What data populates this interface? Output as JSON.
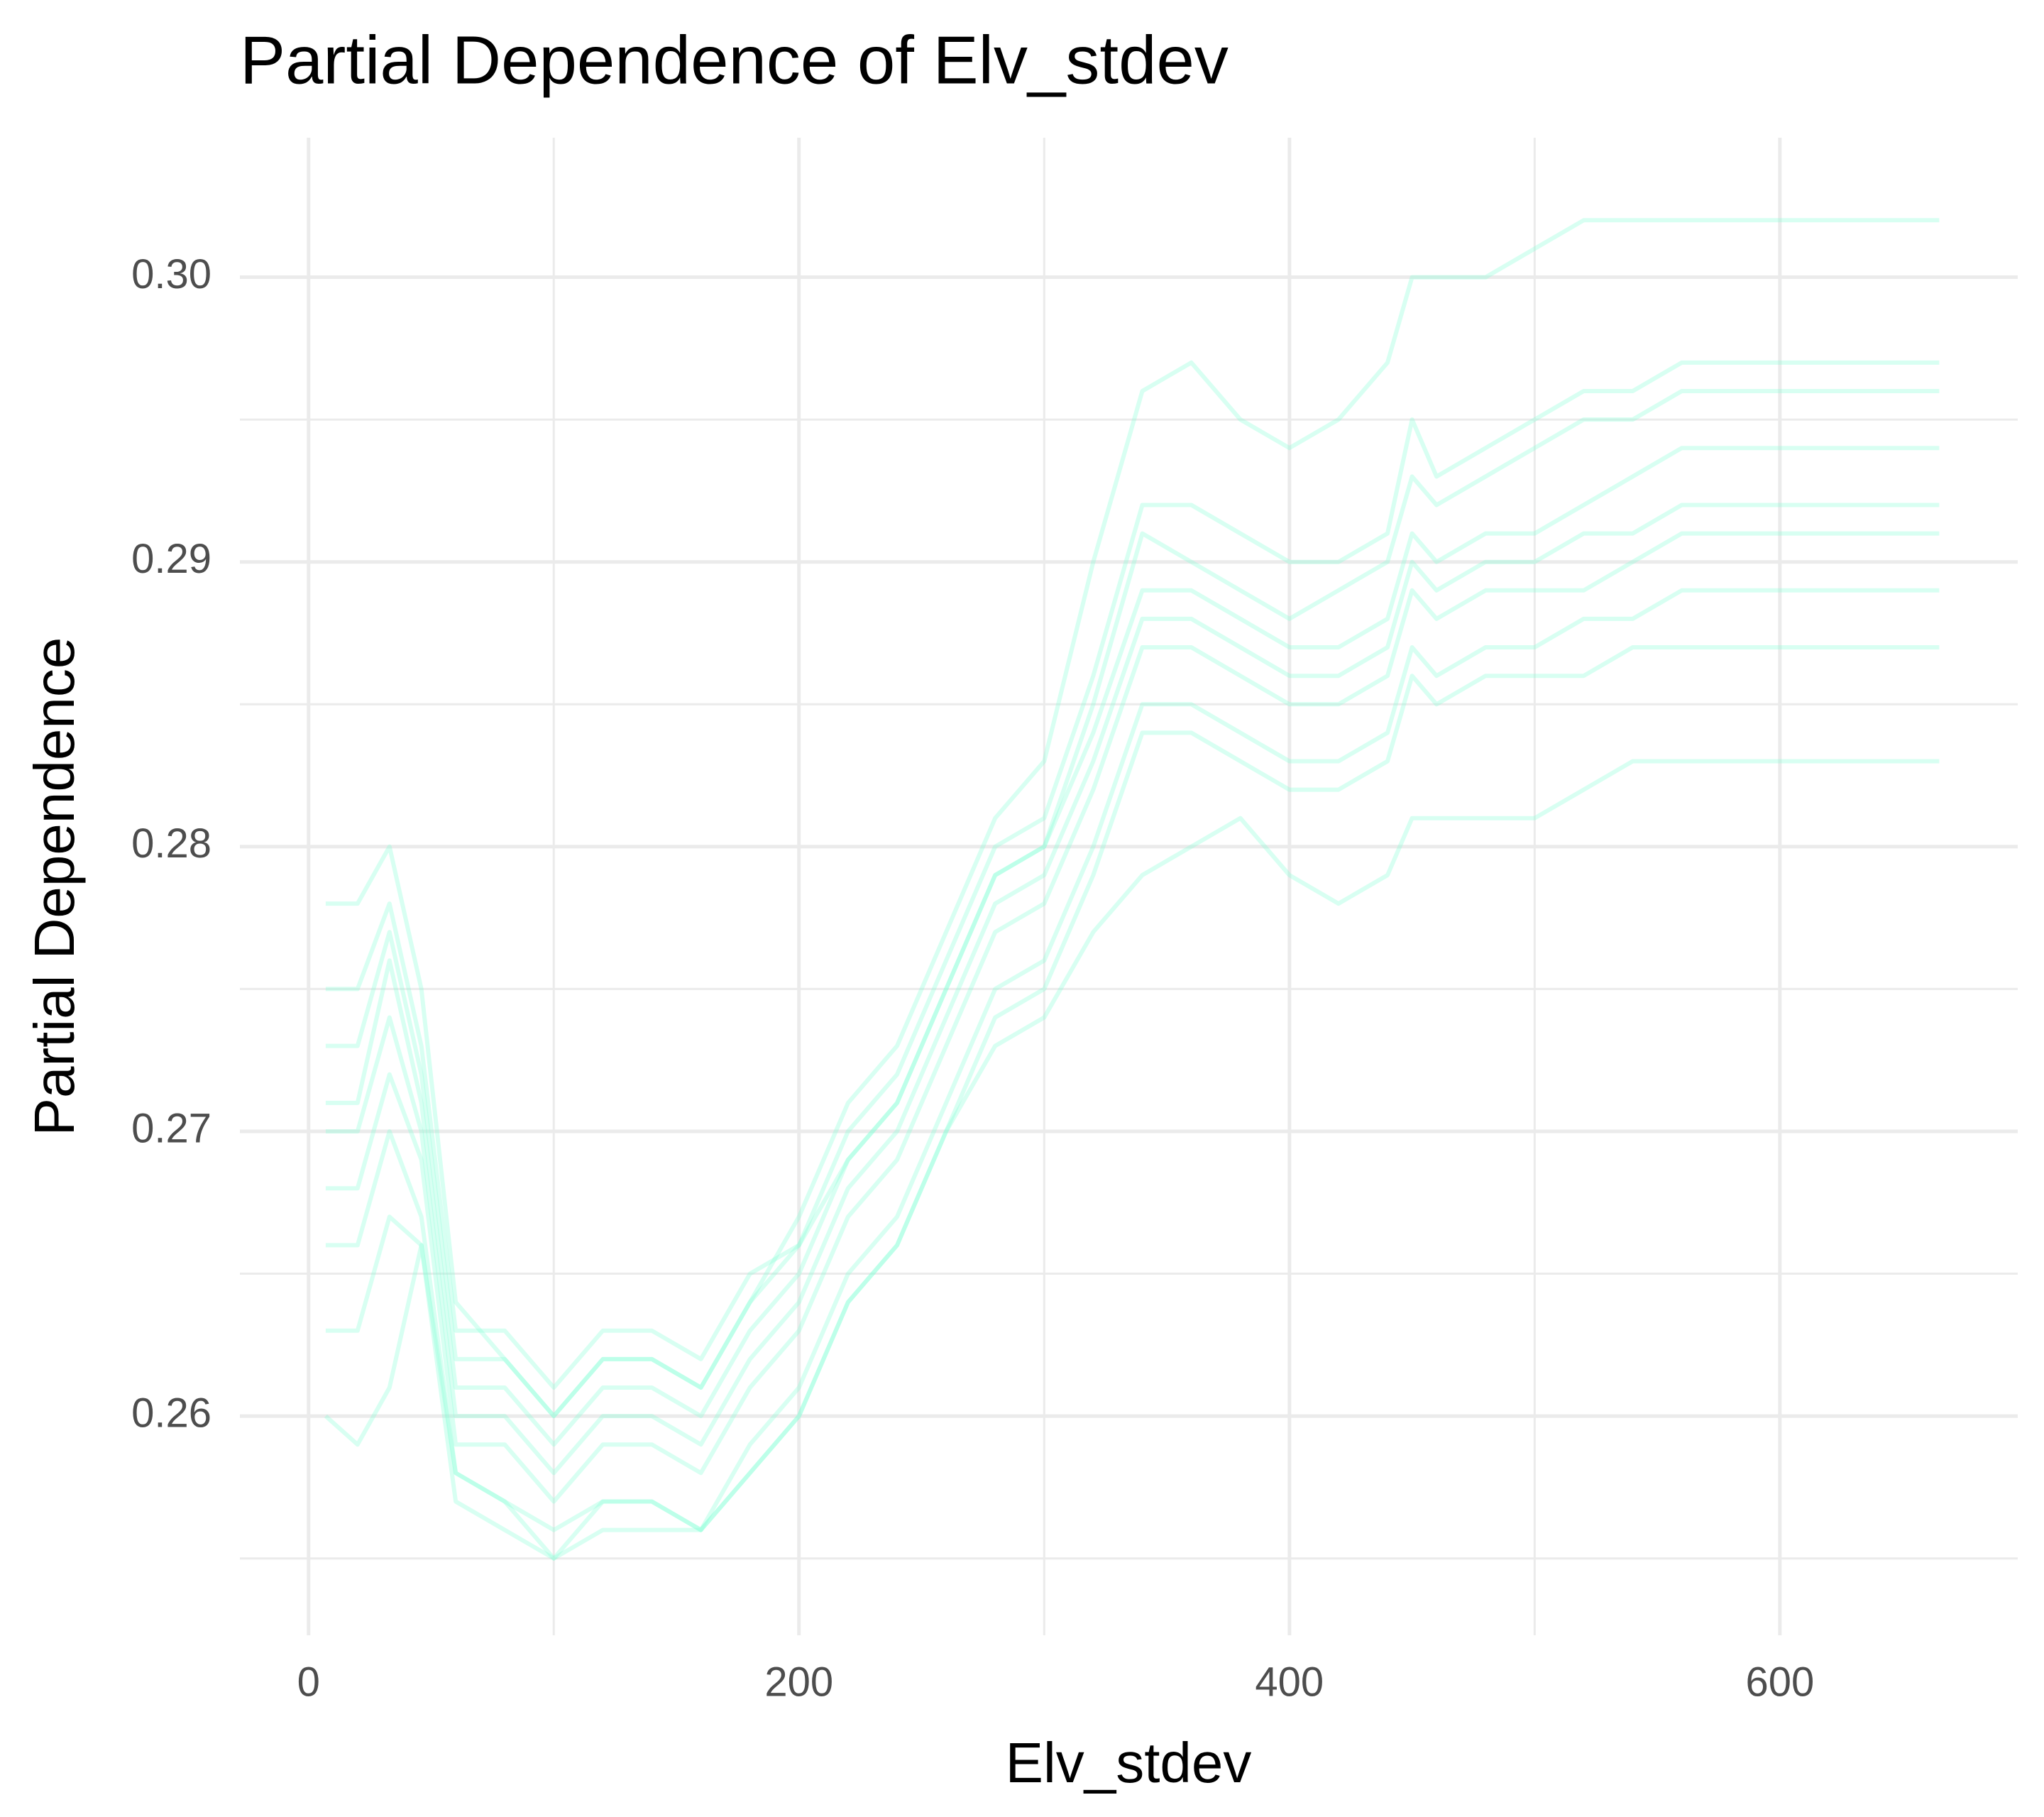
{
  "chart_data": {
    "type": "line",
    "title": "Partial Dependence of Elv_stdev",
    "x_label": "Elv_stdev",
    "y_label": "Partial Dependence",
    "x": [
      7,
      20,
      33,
      46,
      60,
      80,
      100,
      120,
      140,
      160,
      180,
      200,
      220,
      240,
      260,
      280,
      300,
      320,
      340,
      360,
      380,
      400,
      420,
      440,
      450,
      460,
      480,
      500,
      520,
      540,
      560,
      580,
      665
    ],
    "color": "#7fffd4",
    "alpha": 0.3,
    "grid": true,
    "xlim": [
      -28,
      697
    ],
    "xticks": [
      0,
      200,
      400,
      600
    ],
    "ylim": [
      0.2523,
      0.3049
    ],
    "yticks": [
      0.26,
      0.27,
      0.28,
      0.29,
      {
        "value": 0.3,
        "label": "0.30"
      }
    ],
    "series": [
      {
        "values": [
          0.27,
          0.27,
          0.274,
          0.27,
          0.26,
          0.26,
          0.258,
          0.26,
          0.26,
          0.259,
          0.262,
          0.264,
          0.268,
          0.27,
          0.274,
          0.278,
          0.279,
          0.283,
          0.288,
          0.288,
          0.287,
          0.286,
          0.286,
          0.287,
          0.29,
          0.289,
          0.29,
          0.29,
          0.291,
          0.291,
          0.292,
          0.292,
          0.292
        ]
      },
      {
        "values": [
          0.273,
          0.273,
          0.277,
          0.272,
          0.262,
          0.262,
          0.26,
          0.262,
          0.262,
          0.261,
          0.264,
          0.266,
          0.27,
          0.272,
          0.276,
          0.28,
          0.281,
          0.286,
          0.292,
          0.292,
          0.291,
          0.29,
          0.29,
          0.291,
          0.295,
          0.293,
          0.294,
          0.295,
          0.296,
          0.296,
          0.297,
          0.297,
          0.297
        ]
      },
      {
        "values": [
          0.266,
          0.266,
          0.27,
          0.267,
          0.258,
          0.257,
          0.255,
          0.257,
          0.257,
          0.256,
          0.259,
          0.261,
          0.265,
          0.267,
          0.271,
          0.275,
          0.276,
          0.28,
          0.285,
          0.285,
          0.284,
          0.283,
          0.283,
          0.284,
          0.287,
          0.286,
          0.287,
          0.287,
          0.288,
          0.288,
          0.289,
          0.289,
          0.289
        ]
      },
      {
        "values": [
          0.278,
          0.278,
          0.28,
          0.275,
          0.264,
          0.262,
          0.26,
          0.262,
          0.262,
          0.261,
          0.264,
          0.267,
          0.271,
          0.273,
          0.277,
          0.281,
          0.283,
          0.29,
          0.296,
          0.297,
          0.295,
          0.294,
          0.295,
          0.297,
          0.3,
          0.3,
          0.3,
          0.301,
          0.302,
          0.302,
          0.302,
          0.302,
          0.302
        ]
      },
      {
        "values": [
          0.26,
          0.259,
          0.261,
          0.266,
          0.258,
          0.257,
          0.256,
          0.257,
          0.257,
          0.256,
          0.258,
          0.26,
          0.264,
          0.266,
          0.27,
          0.273,
          0.274,
          0.277,
          0.279,
          0.28,
          0.281,
          0.279,
          0.278,
          0.279,
          0.281,
          0.281,
          0.281,
          0.281,
          0.282,
          0.283,
          0.283,
          0.283,
          0.283
        ]
      },
      {
        "values": [
          0.271,
          0.271,
          0.276,
          0.271,
          0.261,
          0.261,
          0.259,
          0.261,
          0.261,
          0.26,
          0.263,
          0.265,
          0.269,
          0.271,
          0.275,
          0.279,
          0.28,
          0.284,
          0.289,
          0.289,
          0.288,
          0.287,
          0.287,
          0.288,
          0.291,
          0.29,
          0.291,
          0.291,
          0.292,
          0.293,
          0.294,
          0.294,
          0.294
        ]
      },
      {
        "values": [
          0.268,
          0.268,
          0.272,
          0.269,
          0.259,
          0.259,
          0.257,
          0.259,
          0.259,
          0.258,
          0.261,
          0.263,
          0.267,
          0.269,
          0.273,
          0.277,
          0.278,
          0.282,
          0.287,
          0.287,
          0.286,
          0.285,
          0.285,
          0.286,
          0.289,
          0.288,
          0.289,
          0.289,
          0.289,
          0.29,
          0.291,
          0.291,
          0.291
        ]
      },
      {
        "values": [
          0.275,
          0.275,
          0.278,
          0.273,
          0.263,
          0.263,
          0.261,
          0.263,
          0.263,
          0.262,
          0.265,
          0.266,
          0.269,
          0.271,
          0.275,
          0.279,
          0.28,
          0.285,
          0.291,
          0.29,
          0.289,
          0.288,
          0.289,
          0.29,
          0.293,
          0.292,
          0.293,
          0.294,
          0.295,
          0.295,
          0.296,
          0.296,
          0.296
        ]
      },
      {
        "values": [
          0.263,
          0.263,
          0.267,
          0.266,
          0.257,
          0.256,
          0.255,
          0.256,
          0.256,
          0.256,
          0.258,
          0.26,
          0.264,
          0.266,
          0.27,
          0.274,
          0.275,
          0.279,
          0.284,
          0.284,
          0.283,
          0.282,
          0.282,
          0.283,
          0.286,
          0.285,
          0.286,
          0.286,
          0.286,
          0.287,
          0.287,
          0.287,
          0.287
        ]
      }
    ]
  }
}
